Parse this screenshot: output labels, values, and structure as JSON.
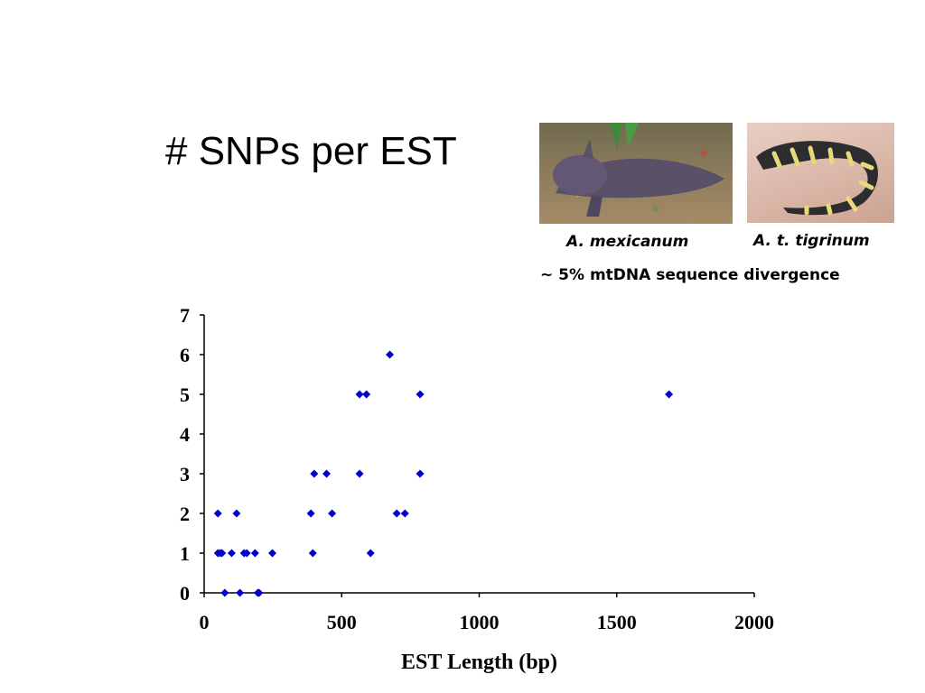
{
  "title": "# SNPs per EST",
  "photos": [
    {
      "caption": "A. mexicanum"
    },
    {
      "caption": "A. t. tigrinum"
    }
  ],
  "divergence_note": "~ 5% mtDNA sequence divergence",
  "chart_data": {
    "type": "scatter",
    "title": "",
    "xlabel": "EST Length (bp)",
    "ylabel": "",
    "xlim": [
      0,
      2000
    ],
    "ylim": [
      0,
      7
    ],
    "xticks": [
      0,
      500,
      1000,
      1500,
      2000
    ],
    "yticks": [
      0,
      1,
      2,
      3,
      4,
      5,
      6,
      7
    ],
    "grid": false,
    "marker_color": "#0000cc",
    "series": [
      {
        "points": [
          [
            50,
            2
          ],
          [
            50,
            1
          ],
          [
            58,
            1
          ],
          [
            65,
            1
          ],
          [
            75,
            0
          ],
          [
            100,
            1
          ],
          [
            118,
            2
          ],
          [
            130,
            0
          ],
          [
            145,
            1
          ],
          [
            155,
            1
          ],
          [
            185,
            1
          ],
          [
            195,
            0
          ],
          [
            200,
            0
          ],
          [
            248,
            1
          ],
          [
            388,
            2
          ],
          [
            395,
            1
          ],
          [
            400,
            3
          ],
          [
            445,
            3
          ],
          [
            465,
            2
          ],
          [
            565,
            5
          ],
          [
            565,
            3
          ],
          [
            590,
            5
          ],
          [
            605,
            1
          ],
          [
            675,
            6
          ],
          [
            700,
            2
          ],
          [
            730,
            2
          ],
          [
            785,
            5
          ],
          [
            785,
            3
          ],
          [
            1690,
            5
          ]
        ]
      }
    ]
  }
}
